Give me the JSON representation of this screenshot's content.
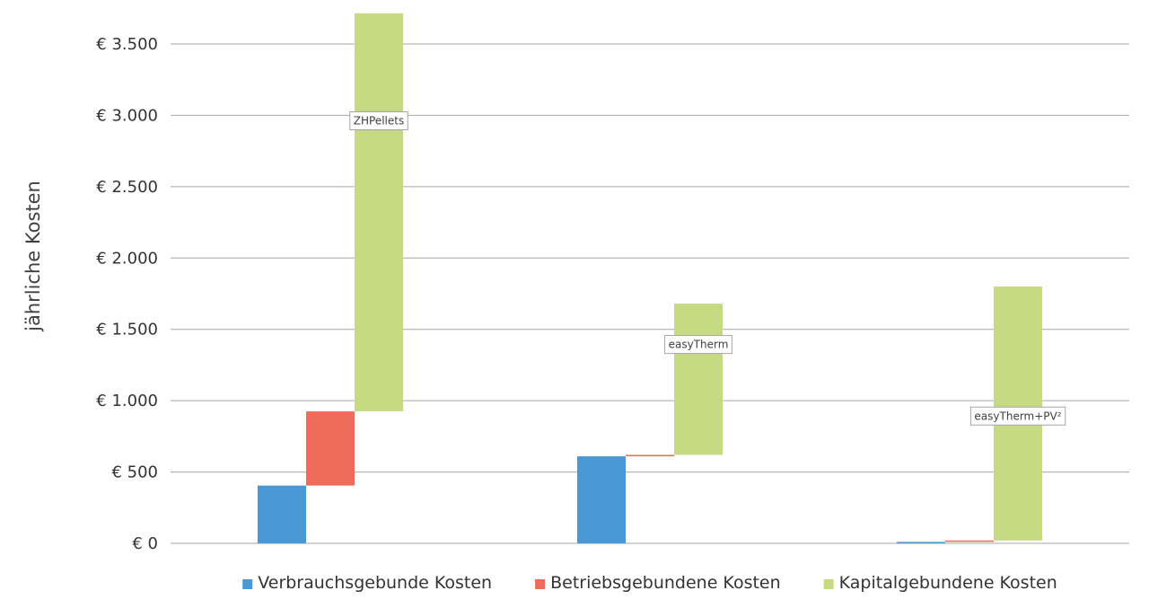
{
  "chart_data": {
    "type": "bar",
    "subtype": "waterfall-stacked",
    "title": "",
    "xlabel": "",
    "ylabel": "jährliche Kosten",
    "ylim": [
      0,
      3500
    ],
    "yticks": [
      0,
      500,
      1000,
      1500,
      2000,
      2500,
      3000,
      3500
    ],
    "ytick_labels": [
      "€ 0",
      "€ 500",
      "€ 1.000",
      "€ 1.500",
      "€ 2.000",
      "€ 2.500",
      "€ 3.000",
      "€ 3.500"
    ],
    "grid": true,
    "legend_position": "bottom",
    "categories": [
      "ZHPellets",
      "easyTherm",
      "easyTherm+PV²"
    ],
    "series": [
      {
        "name": "Verbrauchsgebunde Kosten",
        "color": "#4a98d6",
        "values": [
          405,
          610,
          10
        ]
      },
      {
        "name": "Betriebsgebundene Kosten",
        "color": "#ef6b5a",
        "values": [
          520,
          10,
          10
        ]
      },
      {
        "name": "Kapitalgebundene Kosten",
        "color": "#c6d983",
        "values": [
          2790,
          1060,
          1780
        ]
      }
    ]
  }
}
